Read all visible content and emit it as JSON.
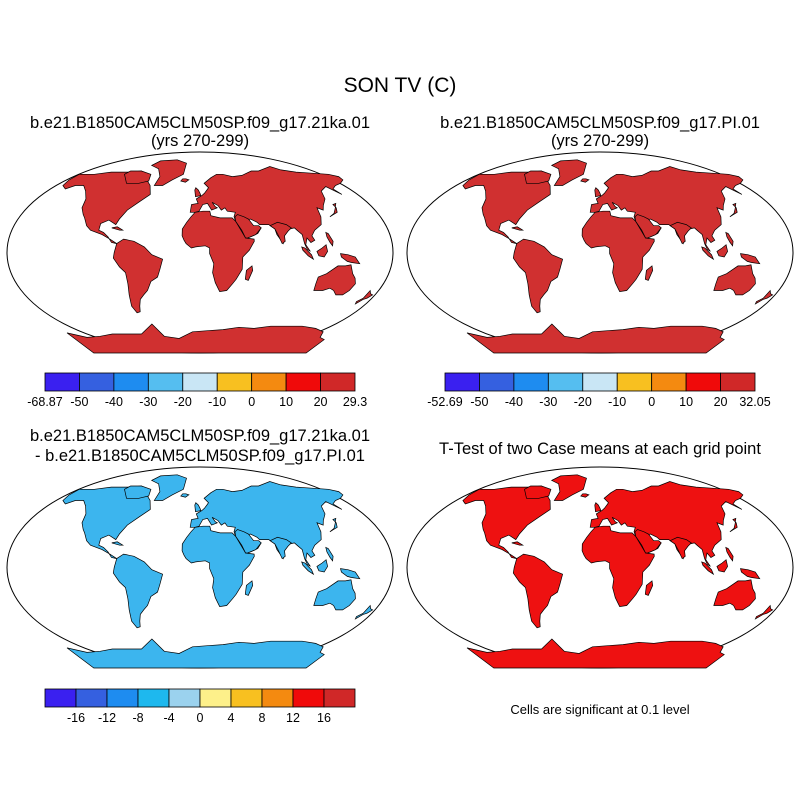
{
  "main_title": "SON TV (C)",
  "panels": {
    "p1": {
      "title1": "b.e21.B1850CAM5CLM50SP.f09_g17.21ka.01",
      "title2": "(yrs 270-299)",
      "land_color": "#D03030",
      "ocean_color": "#ffffff"
    },
    "p2": {
      "title1": "b.e21.B1850CAM5CLM50SP.f09_g17.PI.01",
      "title2": "(yrs 270-299)",
      "land_color": "#D03030",
      "ocean_color": "#ffffff"
    },
    "p3": {
      "title1": "b.e21.B1850CAM5CLM50SP.f09_g17.21ka.01",
      "title2": "- b.e21.B1850CAM5CLM50SP.f09_g17.PI.01",
      "land_color": "#3CB5EE",
      "ocean_color": "#ffffff"
    },
    "p4": {
      "title1": "T-Test of two Case means at each grid point",
      "land_color": "#EE1111",
      "ocean_color": "#ffffff"
    }
  },
  "colorbars": {
    "c1": {
      "colors": [
        "#3A20F0",
        "#3560E0",
        "#1E8CF0",
        "#55BEF0",
        "#C9E6F5",
        "#F8C020",
        "#F48A10",
        "#F00A0A",
        "#D02828"
      ],
      "labels": [
        "-68.87",
        "-50",
        "-40",
        "-30",
        "-20",
        "-10",
        "0",
        "10",
        "20",
        "29.3"
      ]
    },
    "c2": {
      "colors": [
        "#3A20F0",
        "#3560E0",
        "#1E8CF0",
        "#55BEF0",
        "#C9E6F5",
        "#F8C020",
        "#F48A10",
        "#F00A0A",
        "#D02828"
      ],
      "labels": [
        "-52.69",
        "-50",
        "-40",
        "-30",
        "-20",
        "-10",
        "0",
        "10",
        "20",
        "32.05"
      ]
    },
    "c3": {
      "colors": [
        "#3A20F0",
        "#3560E0",
        "#1E8CF0",
        "#1EB8EE",
        "#9BD2EE",
        "#FDF08A",
        "#F8C020",
        "#F48A10",
        "#F00A0A",
        "#D02828"
      ],
      "labels": [
        "-16",
        "-12",
        "-8",
        "-4",
        "0",
        "4",
        "8",
        "12",
        "16"
      ]
    }
  },
  "significance_note": "Cells are significant at 0.1 level"
}
